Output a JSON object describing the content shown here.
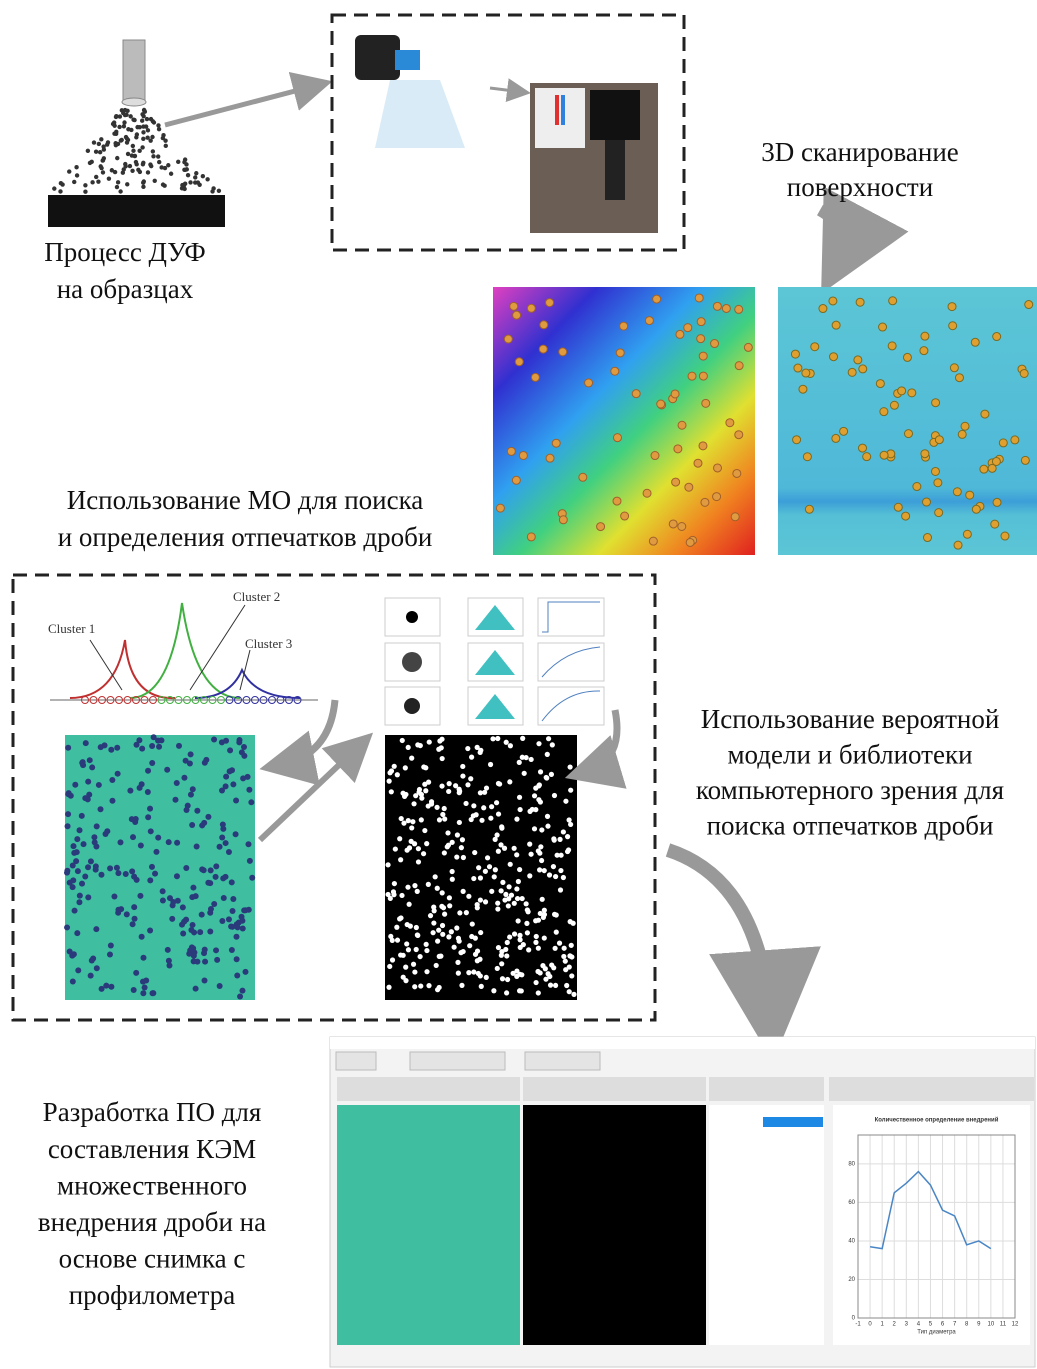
{
  "captions": {
    "process": [
      "Процесс ДУФ",
      "на образцах"
    ],
    "scan": [
      "3D сканирование",
      "поверхности"
    ],
    "ml": [
      "Использование МО для поиска",
      "и определения отпечатков дроби"
    ],
    "cv": [
      "Использование вероятной",
      "модели и библиотеки",
      "компьютерного зрения для",
      "поиска отпечатков дроби"
    ],
    "software": [
      "Разработка ПО для",
      "составления КЭМ",
      "множественного",
      "внедрения дроби на",
      "основе снимка с",
      "профилометра"
    ]
  },
  "clusters": [
    "Cluster 1",
    "Cluster 2",
    "Cluster 3"
  ],
  "software": {
    "chart": {
      "type": "line",
      "title": "Количественное определение внедрений",
      "x_label": "Тип диаметра",
      "color": "#4a86c5",
      "x": [
        0,
        1,
        2,
        3,
        4,
        5,
        6,
        7,
        8,
        9,
        10
      ],
      "values": [
        37,
        36,
        65,
        70,
        76,
        69,
        56,
        53,
        38,
        40,
        36
      ],
      "xlim": [
        -1,
        12
      ],
      "xticks": [
        -1,
        0,
        1,
        2,
        3,
        4,
        5,
        6,
        7,
        8,
        9,
        10,
        11,
        12
      ],
      "ylim": [
        0,
        95
      ],
      "yticks": [
        0,
        20,
        40,
        60,
        80
      ],
      "grid": true
    }
  }
}
